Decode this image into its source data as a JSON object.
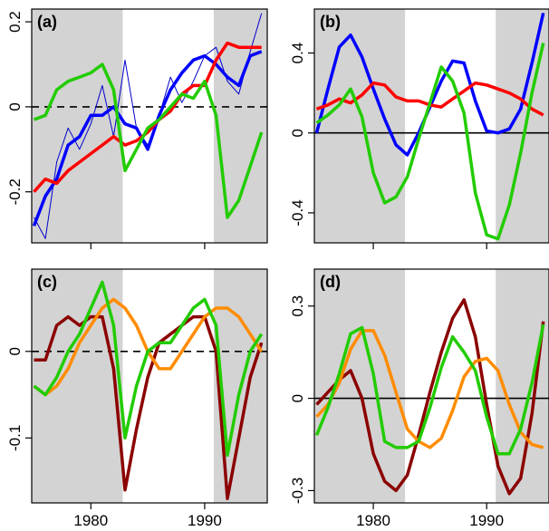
{
  "colors": {
    "blue": "#0000ff",
    "blue_thin": "#0000cc",
    "red": "#ff0000",
    "green": "#22cc00",
    "darkred": "#8b0000",
    "orange": "#ff8c00",
    "shade": "#d3d3d3"
  },
  "chart_data": [
    {
      "type": "line",
      "panel_label": "(a)",
      "xlim": [
        1974.8,
        1995.5
      ],
      "ylim": [
        -0.32,
        0.23
      ],
      "shaded_x": [
        [
          1974.8,
          1982.8
        ],
        [
          1990.8,
          1995.5
        ]
      ],
      "y_ticks": [
        -0.2,
        0,
        0.2
      ],
      "y_tick_labels": [
        "-0.2",
        "0",
        "0.2"
      ],
      "x_ticks": [
        1980,
        1990
      ],
      "x_tick_labels": [
        "",
        ""
      ],
      "hline": {
        "y": 0,
        "style": "dashed"
      },
      "series": [
        {
          "color_key": "blue_thin",
          "width": 1,
          "x": [
            1975,
            1976,
            1977,
            1978,
            1979,
            1980,
            1981,
            1982,
            1983,
            1984,
            1985,
            1986,
            1987,
            1988,
            1989,
            1990,
            1991,
            1992,
            1993,
            1994,
            1995
          ],
          "y": [
            -0.26,
            -0.31,
            -0.13,
            -0.05,
            -0.1,
            -0.04,
            0.05,
            -0.07,
            0.11,
            -0.05,
            -0.09,
            -0.02,
            0.07,
            0.01,
            0.06,
            0.12,
            0.14,
            0.06,
            0.03,
            0.13,
            0.22
          ]
        },
        {
          "color_key": "blue",
          "width": 3.5,
          "x": [
            1975,
            1976,
            1977,
            1978,
            1979,
            1980,
            1981,
            1982,
            1983,
            1984,
            1985,
            1986,
            1987,
            1988,
            1989,
            1990,
            1991,
            1992,
            1993,
            1994,
            1995
          ],
          "y": [
            -0.28,
            -0.21,
            -0.17,
            -0.09,
            -0.07,
            -0.02,
            -0.02,
            0.0,
            -0.04,
            -0.05,
            -0.1,
            -0.02,
            0.04,
            0.08,
            0.11,
            0.12,
            0.1,
            0.07,
            0.05,
            0.12,
            0.13
          ]
        },
        {
          "color_key": "red",
          "width": 3.5,
          "x": [
            1975,
            1976,
            1977,
            1978,
            1979,
            1980,
            1981,
            1982,
            1983,
            1984,
            1985,
            1986,
            1987,
            1988,
            1989,
            1990,
            1991,
            1992,
            1993,
            1994,
            1995
          ],
          "y": [
            -0.2,
            -0.17,
            -0.18,
            -0.15,
            -0.13,
            -0.11,
            -0.09,
            -0.07,
            -0.09,
            -0.08,
            -0.06,
            -0.03,
            -0.01,
            0.03,
            0.05,
            0.05,
            0.11,
            0.15,
            0.14,
            0.14,
            0.14
          ]
        },
        {
          "color_key": "green",
          "width": 3.5,
          "x": [
            1975,
            1976,
            1977,
            1978,
            1979,
            1980,
            1981,
            1982,
            1983,
            1984,
            1985,
            1986,
            1987,
            1988,
            1989,
            1990,
            1991,
            1992,
            1993,
            1994,
            1995
          ],
          "y": [
            -0.03,
            -0.02,
            0.04,
            0.06,
            0.07,
            0.08,
            0.1,
            0.04,
            -0.15,
            -0.1,
            -0.05,
            -0.03,
            0.0,
            0.03,
            0.02,
            0.06,
            -0.02,
            -0.26,
            -0.22,
            -0.14,
            -0.06
          ]
        }
      ]
    },
    {
      "type": "line",
      "panel_label": "(b)",
      "xlim": [
        1974.8,
        1995.5
      ],
      "ylim": [
        -0.55,
        0.62
      ],
      "shaded_x": [
        [
          1974.8,
          1982.8
        ],
        [
          1990.8,
          1995.5
        ]
      ],
      "y_ticks": [
        -0.4,
        0,
        0.4
      ],
      "y_tick_labels": [
        "-0.4",
        "0",
        "0.4"
      ],
      "x_ticks": [
        1980,
        1990
      ],
      "x_tick_labels": [
        "",
        ""
      ],
      "hline": {
        "y": 0,
        "style": "solid"
      },
      "series": [
        {
          "color_key": "blue",
          "width": 3.5,
          "x": [
            1975,
            1976,
            1977,
            1978,
            1979,
            1980,
            1981,
            1982,
            1983,
            1984,
            1985,
            1986,
            1987,
            1988,
            1989,
            1990,
            1991,
            1992,
            1993,
            1994,
            1995
          ],
          "y": [
            0.0,
            0.22,
            0.43,
            0.49,
            0.38,
            0.22,
            0.07,
            -0.06,
            -0.11,
            0.0,
            0.13,
            0.26,
            0.36,
            0.35,
            0.16,
            0.01,
            0.0,
            0.02,
            0.12,
            0.35,
            0.6
          ]
        },
        {
          "color_key": "red",
          "width": 3.5,
          "x": [
            1975,
            1976,
            1977,
            1978,
            1979,
            1980,
            1981,
            1982,
            1983,
            1984,
            1985,
            1986,
            1987,
            1988,
            1989,
            1990,
            1991,
            1992,
            1993,
            1994,
            1995
          ],
          "y": [
            0.12,
            0.14,
            0.17,
            0.15,
            0.19,
            0.25,
            0.24,
            0.18,
            0.16,
            0.16,
            0.14,
            0.13,
            0.17,
            0.21,
            0.25,
            0.24,
            0.22,
            0.2,
            0.17,
            0.12,
            0.09
          ]
        },
        {
          "color_key": "green",
          "width": 3.5,
          "x": [
            1975,
            1976,
            1977,
            1978,
            1979,
            1980,
            1981,
            1982,
            1983,
            1984,
            1985,
            1986,
            1987,
            1988,
            1989,
            1990,
            1991,
            1992,
            1993,
            1994,
            1995
          ],
          "y": [
            0.05,
            0.09,
            0.14,
            0.22,
            0.08,
            -0.2,
            -0.35,
            -0.32,
            -0.22,
            -0.03,
            0.15,
            0.33,
            0.26,
            0.1,
            -0.3,
            -0.51,
            -0.53,
            -0.36,
            -0.1,
            0.2,
            0.45
          ]
        }
      ]
    },
    {
      "type": "line",
      "panel_label": "(c)",
      "xlim": [
        1974.8,
        1995.5
      ],
      "ylim": [
        -0.175,
        0.095
      ],
      "shaded_x": [
        [
          1974.8,
          1982.8
        ],
        [
          1990.8,
          1995.5
        ]
      ],
      "y_ticks": [
        -0.1,
        0
      ],
      "y_tick_labels": [
        "-0.1",
        "0"
      ],
      "x_ticks": [
        1980,
        1990
      ],
      "x_tick_labels": [
        "1980",
        "1990"
      ],
      "hline": {
        "y": 0,
        "style": "dashed"
      },
      "series": [
        {
          "color_key": "darkred",
          "width": 3.5,
          "x": [
            1975,
            1976,
            1977,
            1978,
            1979,
            1980,
            1981,
            1982,
            1983,
            1984,
            1985,
            1986,
            1987,
            1988,
            1989,
            1990,
            1991,
            1992,
            1993,
            1994,
            1995
          ],
          "y": [
            -0.01,
            -0.01,
            0.03,
            0.04,
            0.03,
            0.04,
            0.04,
            -0.02,
            -0.16,
            -0.09,
            -0.03,
            0.01,
            0.02,
            0.03,
            0.04,
            0.04,
            0.0,
            -0.17,
            -0.1,
            -0.03,
            0.01
          ]
        },
        {
          "color_key": "orange",
          "width": 3.5,
          "x": [
            1975,
            1976,
            1977,
            1978,
            1979,
            1980,
            1981,
            1982,
            1983,
            1984,
            1985,
            1986,
            1987,
            1988,
            1989,
            1990,
            1991,
            1992,
            1993,
            1994,
            1995
          ],
          "y": [
            -0.04,
            -0.05,
            -0.04,
            -0.02,
            0.01,
            0.03,
            0.05,
            0.06,
            0.05,
            0.03,
            0.0,
            -0.02,
            -0.02,
            0.0,
            0.02,
            0.04,
            0.05,
            0.05,
            0.04,
            0.02,
            0.0
          ]
        },
        {
          "color_key": "green",
          "width": 3.5,
          "x": [
            1975,
            1976,
            1977,
            1978,
            1979,
            1980,
            1981,
            1982,
            1983,
            1984,
            1985,
            1986,
            1987,
            1988,
            1989,
            1990,
            1991,
            1992,
            1993,
            1994,
            1995
          ],
          "y": [
            -0.04,
            -0.05,
            -0.03,
            0.0,
            0.02,
            0.05,
            0.08,
            0.03,
            -0.1,
            -0.04,
            0.0,
            0.01,
            0.01,
            0.03,
            0.05,
            0.06,
            0.03,
            -0.12,
            -0.05,
            0.0,
            0.02
          ]
        }
      ]
    },
    {
      "type": "line",
      "panel_label": "(d)",
      "xlim": [
        1974.8,
        1995.5
      ],
      "ylim": [
        -0.34,
        0.42
      ],
      "shaded_x": [
        [
          1974.8,
          1982.8
        ],
        [
          1990.8,
          1995.5
        ]
      ],
      "y_ticks": [
        -0.3,
        0,
        0.3
      ],
      "y_tick_labels": [
        "-0.3",
        "0",
        "0.3"
      ],
      "x_ticks": [
        1980,
        1990
      ],
      "x_tick_labels": [
        "1980",
        "1990"
      ],
      "hline": {
        "y": 0,
        "style": "solid"
      },
      "series": [
        {
          "color_key": "darkred",
          "width": 3.5,
          "x": [
            1975,
            1976,
            1977,
            1978,
            1979,
            1980,
            1981,
            1982,
            1983,
            1984,
            1985,
            1986,
            1987,
            1988,
            1989,
            1990,
            1991,
            1992,
            1993,
            1994,
            1995
          ],
          "y": [
            -0.02,
            0.02,
            0.06,
            0.09,
            0.0,
            -0.18,
            -0.27,
            -0.3,
            -0.25,
            -0.12,
            0.02,
            0.15,
            0.26,
            0.32,
            0.2,
            -0.02,
            -0.22,
            -0.31,
            -0.26,
            -0.05,
            0.25
          ]
        },
        {
          "color_key": "orange",
          "width": 3.5,
          "x": [
            1975,
            1976,
            1977,
            1978,
            1979,
            1980,
            1981,
            1982,
            1983,
            1984,
            1985,
            1986,
            1987,
            1988,
            1989,
            1990,
            1991,
            1992,
            1993,
            1994,
            1995
          ],
          "y": [
            -0.06,
            -0.02,
            0.05,
            0.16,
            0.22,
            0.22,
            0.14,
            0.02,
            -0.1,
            -0.14,
            -0.16,
            -0.13,
            -0.04,
            0.07,
            0.12,
            0.13,
            0.09,
            -0.02,
            -0.11,
            -0.15,
            -0.16
          ]
        },
        {
          "color_key": "green",
          "width": 3.5,
          "x": [
            1975,
            1976,
            1977,
            1978,
            1979,
            1980,
            1981,
            1982,
            1983,
            1984,
            1985,
            1986,
            1987,
            1988,
            1989,
            1990,
            1991,
            1992,
            1993,
            1994,
            1995
          ],
          "y": [
            -0.12,
            -0.03,
            0.08,
            0.21,
            0.23,
            0.08,
            -0.14,
            -0.16,
            -0.16,
            -0.14,
            -0.03,
            0.1,
            0.2,
            0.15,
            0.09,
            -0.06,
            -0.18,
            -0.18,
            -0.1,
            0.05,
            0.24
          ]
        }
      ]
    }
  ]
}
